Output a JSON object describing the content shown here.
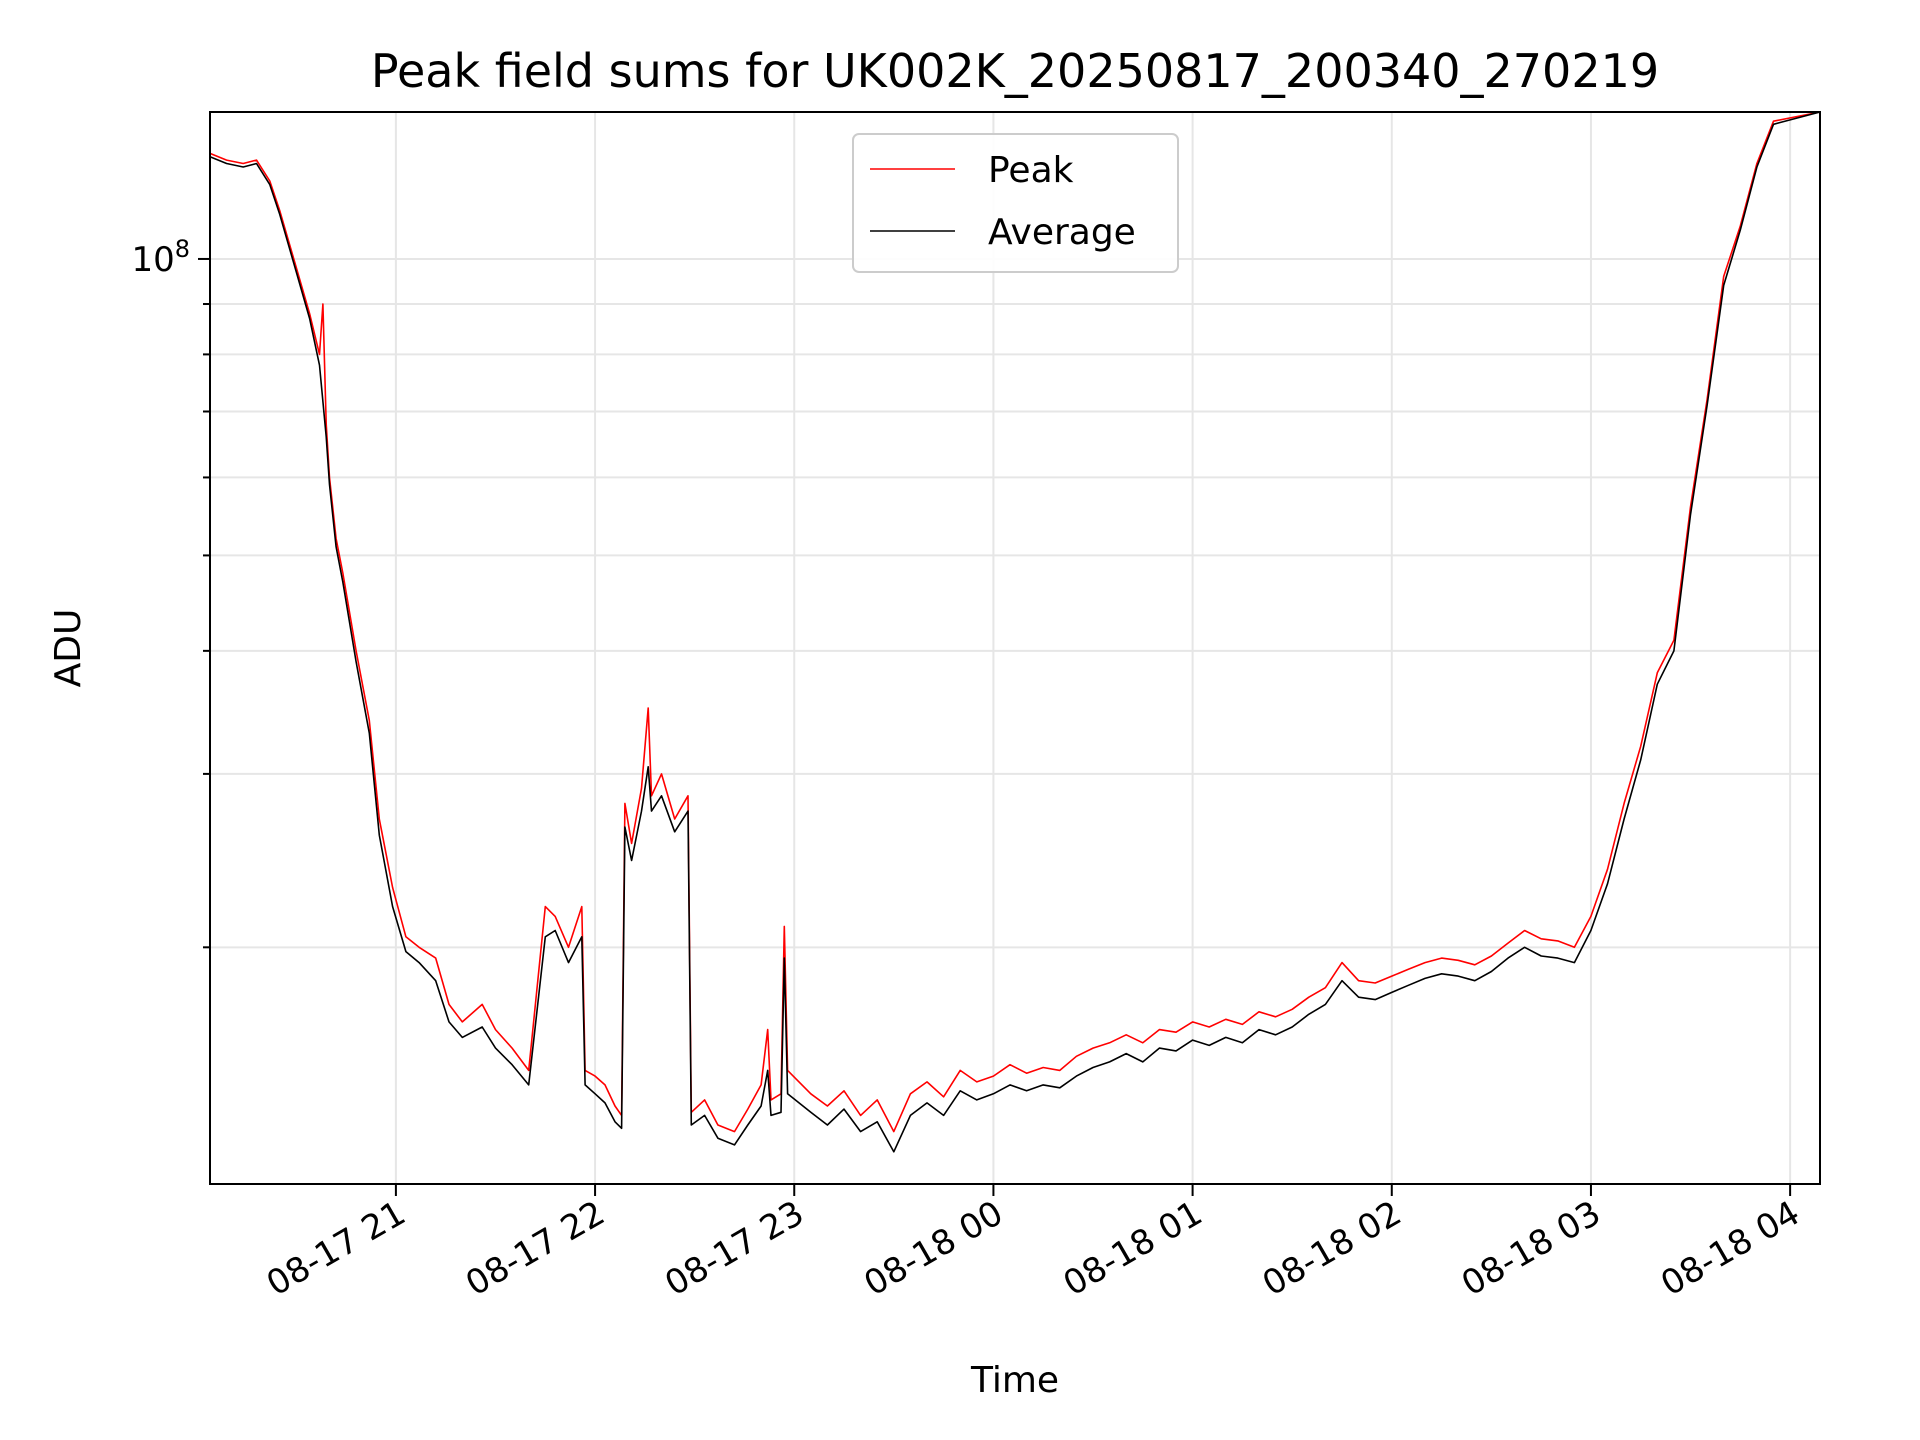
{
  "chart_data": {
    "type": "line",
    "title": "Peak field sums for UK002K_20250817_200340_270219",
    "xlabel": "Time",
    "ylabel": "ADU",
    "yscale": "log",
    "ylim": [
      11500000,
      141000000
    ],
    "xlim": [
      "2025-08-17 20:04",
      "2025-08-18 04:09"
    ],
    "grid": true,
    "legend_position": "top-center",
    "x_ticks": [
      {
        "t": "2025-08-17 21:00",
        "label": "08-17 21"
      },
      {
        "t": "2025-08-17 22:00",
        "label": "08-17 22"
      },
      {
        "t": "2025-08-17 23:00",
        "label": "08-17 23"
      },
      {
        "t": "2025-08-18 00:00",
        "label": "08-18 00"
      },
      {
        "t": "2025-08-18 01:00",
        "label": "08-18 01"
      },
      {
        "t": "2025-08-18 02:00",
        "label": "08-18 02"
      },
      {
        "t": "2025-08-18 03:00",
        "label": "08-18 03"
      },
      {
        "t": "2025-08-18 04:00",
        "label": "08-18 04"
      }
    ],
    "y_major_tick": {
      "value": 100000000,
      "label_base": "10",
      "label_exp": "8"
    },
    "y_minor_ticks": [
      20000000,
      30000000,
      40000000,
      50000000,
      60000000,
      70000000,
      80000000,
      90000000
    ],
    "series": [
      {
        "name": "Peak",
        "color": "#ff0000",
        "points": [
          [
            "2025-08-17 20:04",
            128000000
          ],
          [
            "2025-08-17 20:09",
            126000000
          ],
          [
            "2025-08-17 20:14",
            125000000
          ],
          [
            "2025-08-17 20:18",
            126000000
          ],
          [
            "2025-08-17 20:22",
            120000000
          ],
          [
            "2025-08-17 20:25",
            112000000
          ],
          [
            "2025-08-17 20:30",
            98000000
          ],
          [
            "2025-08-17 20:34",
            88000000
          ],
          [
            "2025-08-17 20:37",
            80000000
          ],
          [
            "2025-08-17 20:38",
            90000000
          ],
          [
            "2025-08-17 20:39",
            68000000
          ],
          [
            "2025-08-17 20:40",
            60000000
          ],
          [
            "2025-08-17 20:42",
            52000000
          ],
          [
            "2025-08-17 20:44",
            48000000
          ],
          [
            "2025-08-17 20:48",
            40000000
          ],
          [
            "2025-08-17 20:52",
            34000000
          ],
          [
            "2025-08-17 20:55",
            27000000
          ],
          [
            "2025-08-17 20:59",
            23000000
          ],
          [
            "2025-08-17 21:03",
            20500000
          ],
          [
            "2025-08-17 21:07",
            20000000
          ],
          [
            "2025-08-17 21:12",
            19500000
          ],
          [
            "2025-08-17 21:16",
            17500000
          ],
          [
            "2025-08-17 21:20",
            16800000
          ],
          [
            "2025-08-17 21:26",
            17500000
          ],
          [
            "2025-08-17 21:30",
            16500000
          ],
          [
            "2025-08-17 21:35",
            15800000
          ],
          [
            "2025-08-17 21:40",
            15000000
          ],
          [
            "2025-08-17 21:45",
            22000000
          ],
          [
            "2025-08-17 21:48",
            21500000
          ],
          [
            "2025-08-17 21:52",
            20000000
          ],
          [
            "2025-08-17 21:56",
            22000000
          ],
          [
            "2025-08-17 21:57",
            15000000
          ],
          [
            "2025-08-17 22:00",
            14800000
          ],
          [
            "2025-08-17 22:03",
            14500000
          ],
          [
            "2025-08-17 22:06",
            13800000
          ],
          [
            "2025-08-17 22:08",
            13500000
          ],
          [
            "2025-08-17 22:09",
            28000000
          ],
          [
            "2025-08-17 22:11",
            25500000
          ],
          [
            "2025-08-17 22:14",
            29000000
          ],
          [
            "2025-08-17 22:16",
            35000000
          ],
          [
            "2025-08-17 22:17",
            28500000
          ],
          [
            "2025-08-17 22:20",
            30000000
          ],
          [
            "2025-08-17 22:24",
            27000000
          ],
          [
            "2025-08-17 22:28",
            28500000
          ],
          [
            "2025-08-17 22:29",
            13600000
          ],
          [
            "2025-08-17 22:33",
            14000000
          ],
          [
            "2025-08-17 22:37",
            13200000
          ],
          [
            "2025-08-17 22:42",
            13000000
          ],
          [
            "2025-08-17 22:46",
            13700000
          ],
          [
            "2025-08-17 22:50",
            14500000
          ],
          [
            "2025-08-17 22:52",
            16500000
          ],
          [
            "2025-08-17 22:53",
            14000000
          ],
          [
            "2025-08-17 22:56",
            14200000
          ],
          [
            "2025-08-17 22:57",
            21000000
          ],
          [
            "2025-08-17 22:58",
            15000000
          ],
          [
            "2025-08-17 23:05",
            14200000
          ],
          [
            "2025-08-17 23:10",
            13800000
          ],
          [
            "2025-08-17 23:15",
            14300000
          ],
          [
            "2025-08-17 23:20",
            13500000
          ],
          [
            "2025-08-17 23:25",
            14000000
          ],
          [
            "2025-08-17 23:30",
            13000000
          ],
          [
            "2025-08-17 23:35",
            14200000
          ],
          [
            "2025-08-17 23:40",
            14600000
          ],
          [
            "2025-08-17 23:45",
            14100000
          ],
          [
            "2025-08-17 23:50",
            15000000
          ],
          [
            "2025-08-17 23:55",
            14600000
          ],
          [
            "2025-08-18 00:00",
            14800000
          ],
          [
            "2025-08-18 00:05",
            15200000
          ],
          [
            "2025-08-18 00:10",
            14900000
          ],
          [
            "2025-08-18 00:15",
            15100000
          ],
          [
            "2025-08-18 00:20",
            15000000
          ],
          [
            "2025-08-18 00:25",
            15500000
          ],
          [
            "2025-08-18 00:30",
            15800000
          ],
          [
            "2025-08-18 00:35",
            16000000
          ],
          [
            "2025-08-18 00:40",
            16300000
          ],
          [
            "2025-08-18 00:45",
            16000000
          ],
          [
            "2025-08-18 00:50",
            16500000
          ],
          [
            "2025-08-18 00:55",
            16400000
          ],
          [
            "2025-08-18 01:00",
            16800000
          ],
          [
            "2025-08-18 01:05",
            16600000
          ],
          [
            "2025-08-18 01:10",
            16900000
          ],
          [
            "2025-08-18 01:15",
            16700000
          ],
          [
            "2025-08-18 01:20",
            17200000
          ],
          [
            "2025-08-18 01:25",
            17000000
          ],
          [
            "2025-08-18 01:30",
            17300000
          ],
          [
            "2025-08-18 01:35",
            17800000
          ],
          [
            "2025-08-18 01:40",
            18200000
          ],
          [
            "2025-08-18 01:45",
            19300000
          ],
          [
            "2025-08-18 01:50",
            18500000
          ],
          [
            "2025-08-18 01:55",
            18400000
          ],
          [
            "2025-08-18 02:00",
            18700000
          ],
          [
            "2025-08-18 02:05",
            19000000
          ],
          [
            "2025-08-18 02:10",
            19300000
          ],
          [
            "2025-08-18 02:15",
            19500000
          ],
          [
            "2025-08-18 02:20",
            19400000
          ],
          [
            "2025-08-18 02:25",
            19200000
          ],
          [
            "2025-08-18 02:30",
            19600000
          ],
          [
            "2025-08-18 02:35",
            20200000
          ],
          [
            "2025-08-18 02:40",
            20800000
          ],
          [
            "2025-08-18 02:45",
            20400000
          ],
          [
            "2025-08-18 02:50",
            20300000
          ],
          [
            "2025-08-18 02:55",
            20000000
          ],
          [
            "2025-08-18 03:00",
            21500000
          ],
          [
            "2025-08-18 03:05",
            24000000
          ],
          [
            "2025-08-18 03:10",
            28000000
          ],
          [
            "2025-08-18 03:15",
            32000000
          ],
          [
            "2025-08-18 03:20",
            38000000
          ],
          [
            "2025-08-18 03:25",
            41000000
          ],
          [
            "2025-08-18 03:30",
            56000000
          ],
          [
            "2025-08-18 03:35",
            72000000
          ],
          [
            "2025-08-18 03:40",
            96000000
          ],
          [
            "2025-08-18 03:45",
            108000000
          ],
          [
            "2025-08-18 03:50",
            125000000
          ],
          [
            "2025-08-18 03:55",
            138000000
          ],
          [
            "2025-08-18 04:09",
            141000000
          ]
        ]
      },
      {
        "name": "Average",
        "color": "#000000",
        "points": [
          [
            "2025-08-17 20:04",
            127000000
          ],
          [
            "2025-08-17 20:09",
            125000000
          ],
          [
            "2025-08-17 20:14",
            124000000
          ],
          [
            "2025-08-17 20:18",
            125000000
          ],
          [
            "2025-08-17 20:22",
            119000000
          ],
          [
            "2025-08-17 20:25",
            111000000
          ],
          [
            "2025-08-17 20:30",
            97000000
          ],
          [
            "2025-08-17 20:34",
            87000000
          ],
          [
            "2025-08-17 20:37",
            78000000
          ],
          [
            "2025-08-17 20:39",
            66000000
          ],
          [
            "2025-08-17 20:40",
            59000000
          ],
          [
            "2025-08-17 20:42",
            51000000
          ],
          [
            "2025-08-17 20:44",
            47000000
          ],
          [
            "2025-08-17 20:48",
            39000000
          ],
          [
            "2025-08-17 20:52",
            33000000
          ],
          [
            "2025-08-17 20:55",
            26000000
          ],
          [
            "2025-08-17 20:59",
            22000000
          ],
          [
            "2025-08-17 21:03",
            19800000
          ],
          [
            "2025-08-17 21:07",
            19300000
          ],
          [
            "2025-08-17 21:12",
            18500000
          ],
          [
            "2025-08-17 21:16",
            16800000
          ],
          [
            "2025-08-17 21:20",
            16200000
          ],
          [
            "2025-08-17 21:26",
            16600000
          ],
          [
            "2025-08-17 21:30",
            15800000
          ],
          [
            "2025-08-17 21:35",
            15200000
          ],
          [
            "2025-08-17 21:40",
            14500000
          ],
          [
            "2025-08-17 21:45",
            20500000
          ],
          [
            "2025-08-17 21:48",
            20800000
          ],
          [
            "2025-08-17 21:52",
            19300000
          ],
          [
            "2025-08-17 21:56",
            20500000
          ],
          [
            "2025-08-17 21:57",
            14500000
          ],
          [
            "2025-08-17 22:00",
            14200000
          ],
          [
            "2025-08-17 22:03",
            13900000
          ],
          [
            "2025-08-17 22:06",
            13300000
          ],
          [
            "2025-08-17 22:08",
            13100000
          ],
          [
            "2025-08-17 22:09",
            26500000
          ],
          [
            "2025-08-17 22:11",
            24500000
          ],
          [
            "2025-08-17 22:14",
            27500000
          ],
          [
            "2025-08-17 22:16",
            30500000
          ],
          [
            "2025-08-17 22:17",
            27500000
          ],
          [
            "2025-08-17 22:20",
            28500000
          ],
          [
            "2025-08-17 22:24",
            26200000
          ],
          [
            "2025-08-17 22:28",
            27500000
          ],
          [
            "2025-08-17 22:29",
            13200000
          ],
          [
            "2025-08-17 22:33",
            13500000
          ],
          [
            "2025-08-17 22:37",
            12800000
          ],
          [
            "2025-08-17 22:42",
            12600000
          ],
          [
            "2025-08-17 22:46",
            13200000
          ],
          [
            "2025-08-17 22:50",
            13800000
          ],
          [
            "2025-08-17 22:52",
            15000000
          ],
          [
            "2025-08-17 22:53",
            13500000
          ],
          [
            "2025-08-17 22:56",
            13600000
          ],
          [
            "2025-08-17 22:57",
            19500000
          ],
          [
            "2025-08-17 22:58",
            14200000
          ],
          [
            "2025-08-17 23:05",
            13600000
          ],
          [
            "2025-08-17 23:10",
            13200000
          ],
          [
            "2025-08-17 23:15",
            13700000
          ],
          [
            "2025-08-17 23:20",
            13000000
          ],
          [
            "2025-08-17 23:25",
            13300000
          ],
          [
            "2025-08-17 23:30",
            12400000
          ],
          [
            "2025-08-17 23:35",
            13500000
          ],
          [
            "2025-08-17 23:40",
            13900000
          ],
          [
            "2025-08-17 23:45",
            13500000
          ],
          [
            "2025-08-17 23:50",
            14300000
          ],
          [
            "2025-08-17 23:55",
            14000000
          ],
          [
            "2025-08-18 00:00",
            14200000
          ],
          [
            "2025-08-18 00:05",
            14500000
          ],
          [
            "2025-08-18 00:10",
            14300000
          ],
          [
            "2025-08-18 00:15",
            14500000
          ],
          [
            "2025-08-18 00:20",
            14400000
          ],
          [
            "2025-08-18 00:25",
            14800000
          ],
          [
            "2025-08-18 00:30",
            15100000
          ],
          [
            "2025-08-18 00:35",
            15300000
          ],
          [
            "2025-08-18 00:40",
            15600000
          ],
          [
            "2025-08-18 00:45",
            15300000
          ],
          [
            "2025-08-18 00:50",
            15800000
          ],
          [
            "2025-08-18 00:55",
            15700000
          ],
          [
            "2025-08-18 01:00",
            16100000
          ],
          [
            "2025-08-18 01:05",
            15900000
          ],
          [
            "2025-08-18 01:10",
            16200000
          ],
          [
            "2025-08-18 01:15",
            16000000
          ],
          [
            "2025-08-18 01:20",
            16500000
          ],
          [
            "2025-08-18 01:25",
            16300000
          ],
          [
            "2025-08-18 01:30",
            16600000
          ],
          [
            "2025-08-18 01:35",
            17100000
          ],
          [
            "2025-08-18 01:40",
            17500000
          ],
          [
            "2025-08-18 01:45",
            18500000
          ],
          [
            "2025-08-18 01:50",
            17800000
          ],
          [
            "2025-08-18 01:55",
            17700000
          ],
          [
            "2025-08-18 02:00",
            18000000
          ],
          [
            "2025-08-18 02:05",
            18300000
          ],
          [
            "2025-08-18 02:10",
            18600000
          ],
          [
            "2025-08-18 02:15",
            18800000
          ],
          [
            "2025-08-18 02:20",
            18700000
          ],
          [
            "2025-08-18 02:25",
            18500000
          ],
          [
            "2025-08-18 02:30",
            18900000
          ],
          [
            "2025-08-18 02:35",
            19500000
          ],
          [
            "2025-08-18 02:40",
            20000000
          ],
          [
            "2025-08-18 02:45",
            19600000
          ],
          [
            "2025-08-18 02:50",
            19500000
          ],
          [
            "2025-08-18 02:55",
            19300000
          ],
          [
            "2025-08-18 03:00",
            20800000
          ],
          [
            "2025-08-18 03:05",
            23200000
          ],
          [
            "2025-08-18 03:10",
            27000000
          ],
          [
            "2025-08-18 03:15",
            31000000
          ],
          [
            "2025-08-18 03:20",
            37000000
          ],
          [
            "2025-08-18 03:25",
            40000000
          ],
          [
            "2025-08-18 03:30",
            55000000
          ],
          [
            "2025-08-18 03:35",
            71000000
          ],
          [
            "2025-08-18 03:40",
            94000000
          ],
          [
            "2025-08-18 03:45",
            107000000
          ],
          [
            "2025-08-18 03:50",
            124000000
          ],
          [
            "2025-08-18 03:55",
            137000000
          ],
          [
            "2025-08-18 04:09",
            141000000
          ]
        ]
      }
    ]
  }
}
